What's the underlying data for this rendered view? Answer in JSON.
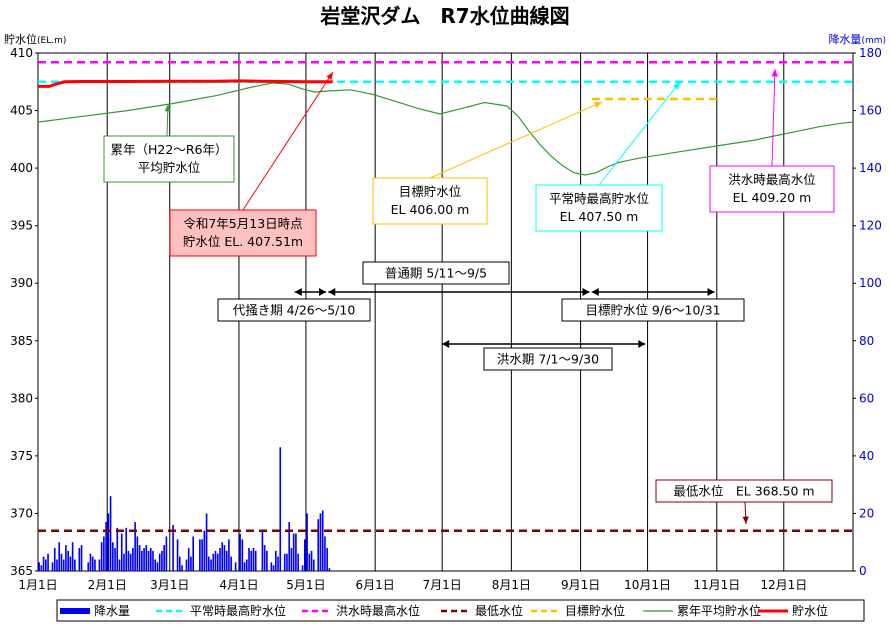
{
  "chart_data": {
    "type": "line",
    "title": "岩堂沢ダム　R7水位曲線図",
    "ylabel_left": "貯水位",
    "ylabel_left_unit": "(EL.m)",
    "ylabel_right": "降水量",
    "ylabel_right_unit": "(mm)",
    "ylim_left": [
      365,
      410
    ],
    "ylim_right": [
      0,
      180
    ],
    "yticks_left": [
      365,
      370,
      375,
      380,
      385,
      390,
      395,
      400,
      405,
      410
    ],
    "yticks_right": [
      0,
      20,
      40,
      60,
      80,
      100,
      120,
      140,
      160,
      180
    ],
    "xlim_day": [
      0,
      365
    ],
    "x_ticks": [
      {
        "label": "1月1日",
        "day": 0
      },
      {
        "label": "2月1日",
        "day": 31
      },
      {
        "label": "3月1日",
        "day": 59
      },
      {
        "label": "4月1日",
        "day": 90
      },
      {
        "label": "5月1日",
        "day": 120
      },
      {
        "label": "6月1日",
        "day": 151
      },
      {
        "label": "7月1日",
        "day": 181
      },
      {
        "label": "8月1日",
        "day": 212
      },
      {
        "label": "9月1日",
        "day": 243
      },
      {
        "label": "10月1日",
        "day": 273
      },
      {
        "label": "11月1日",
        "day": 304
      },
      {
        "label": "12月1日",
        "day": 334
      }
    ],
    "grid": "vertical",
    "series": [
      {
        "name": "降水量",
        "kind": "bar",
        "axis": "right",
        "color": "#0000ff",
        "x": [
          0,
          1,
          2,
          3,
          4,
          6,
          7,
          8,
          9,
          10,
          11,
          12,
          13,
          14,
          15,
          16,
          18,
          19,
          22,
          23,
          24,
          25,
          27,
          28,
          29,
          30,
          31,
          32,
          33,
          34,
          35,
          36,
          37,
          38,
          39,
          40,
          41,
          42,
          43,
          44,
          45,
          46,
          47,
          48,
          49,
          50,
          51,
          52,
          53,
          54,
          55,
          56,
          57,
          60,
          62,
          63,
          64,
          66,
          67,
          68,
          69,
          72,
          73,
          74,
          75,
          76,
          77,
          78,
          79,
          80,
          81,
          82,
          83,
          84,
          85,
          86,
          88,
          90,
          91,
          92,
          93,
          94,
          95,
          96,
          97,
          100,
          101,
          102,
          104,
          105,
          106,
          107,
          108,
          110,
          111,
          112,
          113,
          114,
          115,
          116,
          118,
          119,
          120,
          121,
          122,
          123,
          125,
          126,
          127,
          128,
          129,
          130
        ],
        "y": [
          3,
          2,
          5,
          4,
          6,
          3,
          8,
          4,
          10,
          6,
          4,
          9,
          7,
          5,
          10,
          4,
          8,
          9,
          3,
          6,
          5,
          4,
          4,
          10,
          12,
          17,
          20,
          26,
          10,
          8,
          15,
          4,
          13,
          6,
          15,
          7,
          6,
          8,
          17,
          12,
          9,
          7,
          8,
          9,
          7,
          8,
          7,
          4,
          3,
          6,
          7,
          9,
          12,
          16,
          11,
          5,
          2,
          4,
          8,
          5,
          12,
          11,
          11,
          14,
          20,
          5,
          4,
          6,
          7,
          6,
          8,
          10,
          9,
          7,
          11,
          5,
          3,
          13,
          11,
          3,
          4,
          8,
          7,
          8,
          7,
          14,
          9,
          7,
          3,
          2,
          7,
          5,
          43,
          6,
          6,
          17,
          8,
          13,
          13,
          6,
          2,
          11,
          20,
          6,
          7,
          4,
          18,
          20,
          21,
          12,
          8,
          1
        ]
      },
      {
        "name": "平常時最高貯水位",
        "kind": "line",
        "axis": "left",
        "color": "#00ffff",
        "dash": true,
        "x": [
          0,
          365
        ],
        "y": [
          407.5,
          407.5
        ]
      },
      {
        "name": "洪水時最高水位",
        "kind": "line",
        "axis": "left",
        "color": "#ff00ff",
        "dash": true,
        "x": [
          0,
          365
        ],
        "y": [
          409.2,
          409.2
        ]
      },
      {
        "name": "最低水位",
        "kind": "line",
        "axis": "left",
        "color": "#800000",
        "dash": true,
        "x": [
          0,
          365
        ],
        "y": [
          368.5,
          368.5
        ]
      },
      {
        "name": "目標貯水位",
        "kind": "line",
        "axis": "left",
        "color": "#ffc000",
        "dash": true,
        "x": [
          248,
          304
        ],
        "y": [
          406.0,
          406.0
        ]
      },
      {
        "name": "累年平均貯水位",
        "kind": "line",
        "axis": "left",
        "color": "#339933",
        "x": [
          0,
          20,
          40,
          60,
          80,
          95,
          105,
          112,
          118,
          124,
          130,
          140,
          150,
          160,
          170,
          180,
          190,
          200,
          210,
          215,
          220,
          225,
          230,
          235,
          240,
          245,
          250,
          255,
          260,
          270,
          280,
          290,
          300,
          310,
          320,
          330,
          340,
          350,
          360,
          365
        ],
        "y": [
          404.0,
          404.5,
          405.0,
          405.6,
          406.3,
          407.0,
          407.4,
          407.3,
          406.9,
          406.6,
          406.7,
          406.8,
          406.4,
          405.8,
          405.2,
          404.7,
          405.2,
          405.7,
          405.4,
          404.5,
          403.2,
          402.0,
          401.0,
          400.2,
          399.6,
          399.4,
          399.6,
          400.1,
          400.5,
          400.9,
          401.2,
          401.5,
          401.8,
          402.1,
          402.4,
          402.8,
          403.2,
          403.6,
          403.9,
          404.0
        ]
      },
      {
        "name": "貯水位",
        "kind": "line",
        "axis": "left",
        "color": "#ff0000",
        "x": [
          0,
          5,
          8,
          12,
          20,
          40,
          60,
          80,
          90,
          100,
          110,
          120,
          132
        ],
        "y": [
          407.1,
          407.1,
          407.3,
          407.5,
          407.52,
          407.52,
          407.55,
          407.55,
          407.58,
          407.55,
          407.52,
          407.5,
          407.51
        ]
      }
    ],
    "legend": "bottom",
    "annotations": [
      {
        "id": "ann-avg",
        "lines": [
          "累年（H22〜R6年）",
          "平均貯水位"
        ],
        "color": "#339933"
      },
      {
        "id": "ann-current",
        "lines": [
          "令和7年5月13日時点",
          "貯水位 EL. 407.51m"
        ],
        "color": "#ff0000"
      },
      {
        "id": "ann-target",
        "lines": [
          "目標貯水位",
          "EL 406.00 m"
        ],
        "color": "#ffc000"
      },
      {
        "id": "ann-normal",
        "lines": [
          "平常時最高貯水位",
          "EL 407.50 m"
        ],
        "color": "#00ffff"
      },
      {
        "id": "ann-flood",
        "lines": [
          "洪水時最高水位",
          "EL 409.20 m"
        ],
        "color": "#ff00ff"
      },
      {
        "id": "ann-min",
        "lines": [
          "最低水位　EL 368.50 m"
        ],
        "color": "#800000"
      },
      {
        "id": "ann-futsu",
        "lines": [
          "普通期 5/11〜9/5"
        ],
        "color": "#000000"
      },
      {
        "id": "ann-shiro",
        "lines": [
          "代掻き期 4/26〜5/10"
        ],
        "color": "#000000"
      },
      {
        "id": "ann-mokuhyo",
        "lines": [
          "目標貯水位 9/6〜10/31"
        ],
        "color": "#000000"
      },
      {
        "id": "ann-kozui",
        "lines": [
          "洪水期 7/1〜9/30"
        ],
        "color": "#000000"
      }
    ],
    "periods": [
      {
        "id": "period-futsu",
        "start_day": 130,
        "end_day": 247
      },
      {
        "id": "period-shiro",
        "start_day": 115,
        "end_day": 129
      },
      {
        "id": "period-mokuhyo",
        "start_day": 248,
        "end_day": 303
      },
      {
        "id": "period-kozui",
        "start_day": 181,
        "end_day": 272
      }
    ]
  }
}
